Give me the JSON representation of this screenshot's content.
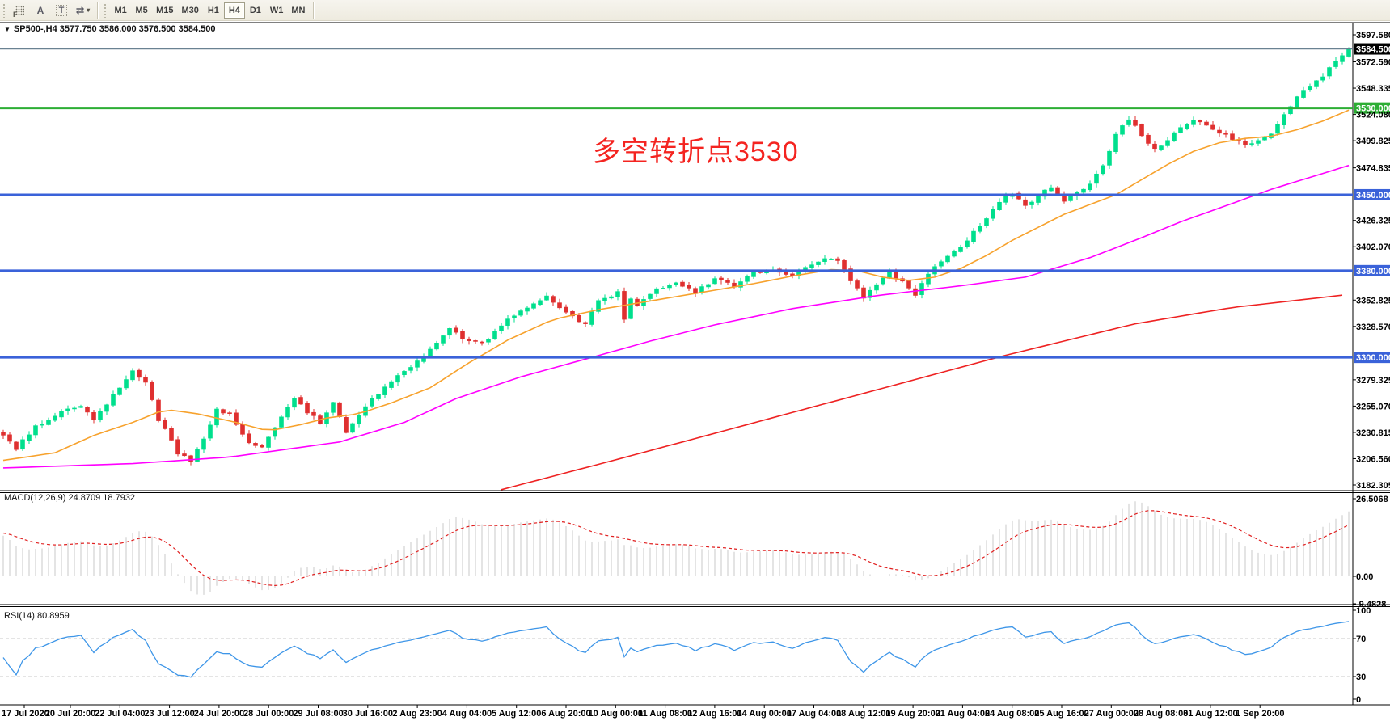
{
  "toolbar": {
    "tools": [
      {
        "name": "fibonacci",
        "glyph": "F"
      },
      {
        "name": "text",
        "glyph": "A"
      },
      {
        "name": "text-label",
        "glyph": "T"
      },
      {
        "name": "arrows",
        "glyph": "⇄",
        "has_dropdown": true,
        "dropdown_glyph": "▾"
      }
    ],
    "timeframes": [
      "M1",
      "M5",
      "M15",
      "M30",
      "H1",
      "H4",
      "D1",
      "W1",
      "MN"
    ],
    "active_timeframe": "H4"
  },
  "symbol_line": {
    "dropdown_glyph": "▼",
    "text": "SP500-,H4 3577.750 3586.000 3576.500 3584.500"
  },
  "annotation": {
    "text": "多空转折点3530",
    "color": "#f42420"
  },
  "chart_data": {
    "type": "candlestick",
    "symbol": "SP500-",
    "timeframe": "H4",
    "current_candle": {
      "open": 3577.75,
      "high": 3586.0,
      "low": 3576.5,
      "close": 3584.5
    },
    "candle_count": 209,
    "price_axis": {
      "range": [
        3182.305,
        3597.58
      ],
      "ticks": [
        "3597.580",
        "3572.590",
        "3548.335",
        "3524.080",
        "3499.825",
        "3474.835",
        "3426.325",
        "3402.070",
        "3352.825",
        "3328.570",
        "3279.325",
        "3255.070",
        "3230.815",
        "3206.560",
        "3182.305"
      ],
      "current_price": 3584.5,
      "current_price_label": "3584.500"
    },
    "hlines": [
      {
        "value": 3530,
        "label": "3530.000",
        "color": "#2cae34"
      },
      {
        "value": 3450,
        "label": "3450.000",
        "color": "#3a62d9"
      },
      {
        "value": 3380,
        "label": "3380.000",
        "color": "#3a62d9"
      },
      {
        "value": 3300,
        "label": "3300.000",
        "color": "#3a62d9"
      }
    ],
    "time_axis": [
      "17 Jul 2020",
      "20 Jul 20:00",
      "22 Jul 04:00",
      "23 Jul 12:00",
      "24 Jul 20:00",
      "28 Jul 00:00",
      "29 Jul 08:00",
      "30 Jul 16:00",
      "2 Aug 23:00",
      "4 Aug 04:00",
      "5 Aug 12:00",
      "6 Aug 20:00",
      "10 Aug 00:00",
      "11 Aug 08:00",
      "12 Aug 16:00",
      "14 Aug 00:00",
      "17 Aug 04:00",
      "18 Aug 12:00",
      "19 Aug 20:00",
      "21 Aug 04:00",
      "24 Aug 08:00",
      "25 Aug 16:00",
      "27 Aug 00:00",
      "28 Aug 08:00",
      "31 Aug 12:00",
      "1 Sep 20:00"
    ],
    "close_path": [
      [
        0,
        3228
      ],
      [
        2,
        3216
      ],
      [
        5,
        3236
      ],
      [
        9,
        3250
      ],
      [
        12,
        3256
      ],
      [
        14,
        3243
      ],
      [
        18,
        3272
      ],
      [
        20,
        3288
      ],
      [
        22,
        3278
      ],
      [
        24,
        3243
      ],
      [
        27,
        3212
      ],
      [
        29,
        3205
      ],
      [
        31,
        3226
      ],
      [
        33,
        3252
      ],
      [
        35,
        3247
      ],
      [
        38,
        3222
      ],
      [
        40,
        3218
      ],
      [
        43,
        3246
      ],
      [
        45,
        3262
      ],
      [
        47,
        3250
      ],
      [
        49,
        3240
      ],
      [
        51,
        3258
      ],
      [
        53,
        3232
      ],
      [
        55,
        3248
      ],
      [
        57,
        3262
      ],
      [
        60,
        3278
      ],
      [
        63,
        3292
      ],
      [
        66,
        3308
      ],
      [
        69,
        3326
      ],
      [
        71,
        3318
      ],
      [
        74,
        3312
      ],
      [
        77,
        3330
      ],
      [
        80,
        3344
      ],
      [
        84,
        3356
      ],
      [
        87,
        3342
      ],
      [
        90,
        3330
      ],
      [
        92,
        3352
      ],
      [
        95,
        3360
      ],
      [
        96,
        3334
      ],
      [
        97,
        3354
      ],
      [
        98,
        3348
      ],
      [
        101,
        3362
      ],
      [
        104,
        3368
      ],
      [
        107,
        3360
      ],
      [
        110,
        3372
      ],
      [
        113,
        3366
      ],
      [
        116,
        3378
      ],
      [
        119,
        3382
      ],
      [
        122,
        3374
      ],
      [
        125,
        3386
      ],
      [
        127,
        3392
      ],
      [
        129,
        3388
      ],
      [
        131,
        3372
      ],
      [
        133,
        3354
      ],
      [
        135,
        3368
      ],
      [
        137,
        3378
      ],
      [
        139,
        3370
      ],
      [
        141,
        3358
      ],
      [
        143,
        3378
      ],
      [
        145,
        3388
      ],
      [
        148,
        3402
      ],
      [
        150,
        3415
      ],
      [
        152,
        3428
      ],
      [
        154,
        3444
      ],
      [
        156,
        3452
      ],
      [
        158,
        3440
      ],
      [
        160,
        3448
      ],
      [
        162,
        3458
      ],
      [
        164,
        3444
      ],
      [
        166,
        3452
      ],
      [
        168,
        3460
      ],
      [
        170,
        3478
      ],
      [
        172,
        3505
      ],
      [
        174,
        3520
      ],
      [
        176,
        3505
      ],
      [
        178,
        3492
      ],
      [
        180,
        3500
      ],
      [
        182,
        3512
      ],
      [
        184,
        3518
      ],
      [
        186,
        3515
      ],
      [
        188,
        3508
      ],
      [
        190,
        3502
      ],
      [
        192,
        3495
      ],
      [
        194,
        3500
      ],
      [
        196,
        3505
      ],
      [
        198,
        3525
      ],
      [
        200,
        3540
      ],
      [
        202,
        3550
      ],
      [
        204,
        3558
      ],
      [
        206,
        3574
      ],
      [
        207,
        3579
      ],
      [
        208,
        3584.5
      ]
    ],
    "ma_lines": [
      {
        "name": "fast-ma",
        "color": "#f7a22d",
        "points": [
          [
            0,
            3205
          ],
          [
            8,
            3212
          ],
          [
            14,
            3228
          ],
          [
            20,
            3240
          ],
          [
            25,
            3252
          ],
          [
            30,
            3248
          ],
          [
            36,
            3240
          ],
          [
            41,
            3232
          ],
          [
            46,
            3238
          ],
          [
            50,
            3244
          ],
          [
            55,
            3248
          ],
          [
            60,
            3258
          ],
          [
            66,
            3272
          ],
          [
            72,
            3295
          ],
          [
            78,
            3316
          ],
          [
            85,
            3335
          ],
          [
            92,
            3344
          ],
          [
            98,
            3350
          ],
          [
            104,
            3356
          ],
          [
            110,
            3362
          ],
          [
            116,
            3368
          ],
          [
            122,
            3375
          ],
          [
            128,
            3381
          ],
          [
            132,
            3380
          ],
          [
            136,
            3374
          ],
          [
            140,
            3371
          ],
          [
            144,
            3374
          ],
          [
            148,
            3382
          ],
          [
            152,
            3394
          ],
          [
            156,
            3408
          ],
          [
            160,
            3420
          ],
          [
            164,
            3432
          ],
          [
            168,
            3441
          ],
          [
            172,
            3450
          ],
          [
            176,
            3464
          ],
          [
            180,
            3478
          ],
          [
            184,
            3490
          ],
          [
            188,
            3498
          ],
          [
            192,
            3502
          ],
          [
            196,
            3504
          ],
          [
            200,
            3510
          ],
          [
            204,
            3518
          ],
          [
            208,
            3528
          ]
        ]
      },
      {
        "name": "medium-ma",
        "color": "#ff00ff",
        "points": [
          [
            0,
            3198
          ],
          [
            20,
            3202
          ],
          [
            35,
            3208
          ],
          [
            52,
            3222
          ],
          [
            62,
            3240
          ],
          [
            70,
            3262
          ],
          [
            80,
            3282
          ],
          [
            91,
            3300
          ],
          [
            100,
            3315
          ],
          [
            110,
            3330
          ],
          [
            122,
            3345
          ],
          [
            135,
            3357
          ],
          [
            148,
            3366
          ],
          [
            158,
            3374
          ],
          [
            168,
            3392
          ],
          [
            175,
            3408
          ],
          [
            182,
            3425
          ],
          [
            190,
            3442
          ],
          [
            196,
            3455
          ],
          [
            202,
            3466
          ],
          [
            208,
            3477
          ]
        ]
      },
      {
        "name": "slow-ma",
        "color": "#ee2222",
        "points": [
          [
            77,
            3178
          ],
          [
            95,
            3206
          ],
          [
            115,
            3238
          ],
          [
            135,
            3270
          ],
          [
            155,
            3302
          ],
          [
            175,
            3331
          ],
          [
            190,
            3346
          ],
          [
            208,
            3358
          ]
        ]
      }
    ],
    "macd": {
      "label": "MACD(12,26,9) 24.8709 18.7932",
      "params": [
        12,
        26,
        9
      ],
      "main_value": 24.8709,
      "signal_value": 18.7932,
      "axis_ticks": [
        "26.5068",
        "0.00",
        "-9.4828"
      ],
      "bar_color": "#c9c9c9",
      "signal_color": "#e02020"
    },
    "rsi": {
      "label": "RSI(14) 80.8959",
      "period": 14,
      "value": 80.8959,
      "axis_ticks": [
        "100",
        "70",
        "30",
        "0"
      ],
      "levels": [
        70,
        30
      ],
      "color": "#3e96e8",
      "level_color": "#c8c8c8"
    },
    "colors": {
      "bull": "#00df8d",
      "bear": "#df3030",
      "current_price_line": "#6a8292",
      "axis_text": "#000000"
    }
  }
}
